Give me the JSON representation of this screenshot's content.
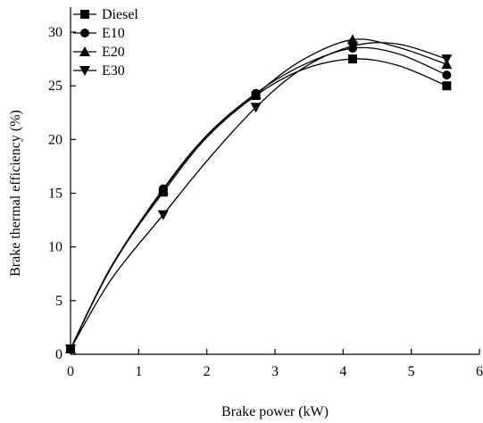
{
  "chart_data": {
    "type": "line",
    "xlabel": "Brake power (kW)",
    "ylabel": "Brake thermal efficiency (%)",
    "xlim": [
      0,
      6
    ],
    "ylim": [
      0,
      30
    ],
    "xticks": [
      "0",
      "1",
      "2",
      "3",
      "4",
      "5",
      "6"
    ],
    "yticks": [
      "0",
      "5",
      "10",
      "15",
      "20",
      "25",
      "30"
    ],
    "grid": false,
    "legend_position": "top-left",
    "series": [
      {
        "name": "Diesel",
        "marker": "square",
        "x": [
          0,
          1.36,
          2.72,
          4.14,
          5.52
        ],
        "y": [
          0.5,
          15.1,
          24.1,
          27.5,
          25.0
        ],
        "curve_x": [
          0,
          0.6,
          1.36,
          2.0,
          2.72,
          3.4,
          4.14,
          4.8,
          5.52
        ],
        "curve_y": [
          0.5,
          8.2,
          15.1,
          20.2,
          24.1,
          26.5,
          27.5,
          26.9,
          25.0
        ]
      },
      {
        "name": "E10",
        "marker": "circle",
        "x": [
          0,
          1.36,
          2.72,
          4.14,
          5.52
        ],
        "y": [
          0.5,
          15.4,
          24.3,
          28.5,
          26.0
        ],
        "curve_x": [
          0,
          0.6,
          1.36,
          2.0,
          2.72,
          3.4,
          4.14,
          4.8,
          5.52
        ],
        "curve_y": [
          0.5,
          8.2,
          15.4,
          20.4,
          24.3,
          26.9,
          28.5,
          28.0,
          26.0
        ]
      },
      {
        "name": "E20",
        "marker": "triangle-up",
        "x": [
          0,
          1.36,
          2.72,
          4.14,
          5.52
        ],
        "y": [
          0.5,
          15.3,
          24.2,
          29.3,
          27.0
        ],
        "curve_x": [
          0,
          0.6,
          1.36,
          2.0,
          2.72,
          3.4,
          4.14,
          4.8,
          5.52
        ],
        "curve_y": [
          0.5,
          8.1,
          15.3,
          20.3,
          24.2,
          27.4,
          29.3,
          28.6,
          27.0
        ]
      },
      {
        "name": "E30",
        "marker": "triangle-down",
        "x": [
          0,
          1.36,
          2.72,
          4.14,
          5.52
        ],
        "y": [
          0.5,
          13.0,
          23.0,
          28.7,
          27.5
        ],
        "curve_x": [
          0,
          0.6,
          1.36,
          2.0,
          2.72,
          3.4,
          4.14,
          4.8,
          5.52
        ],
        "curve_y": [
          0.5,
          7.0,
          13.0,
          18.0,
          23.0,
          26.6,
          28.7,
          28.9,
          27.5
        ]
      }
    ]
  }
}
